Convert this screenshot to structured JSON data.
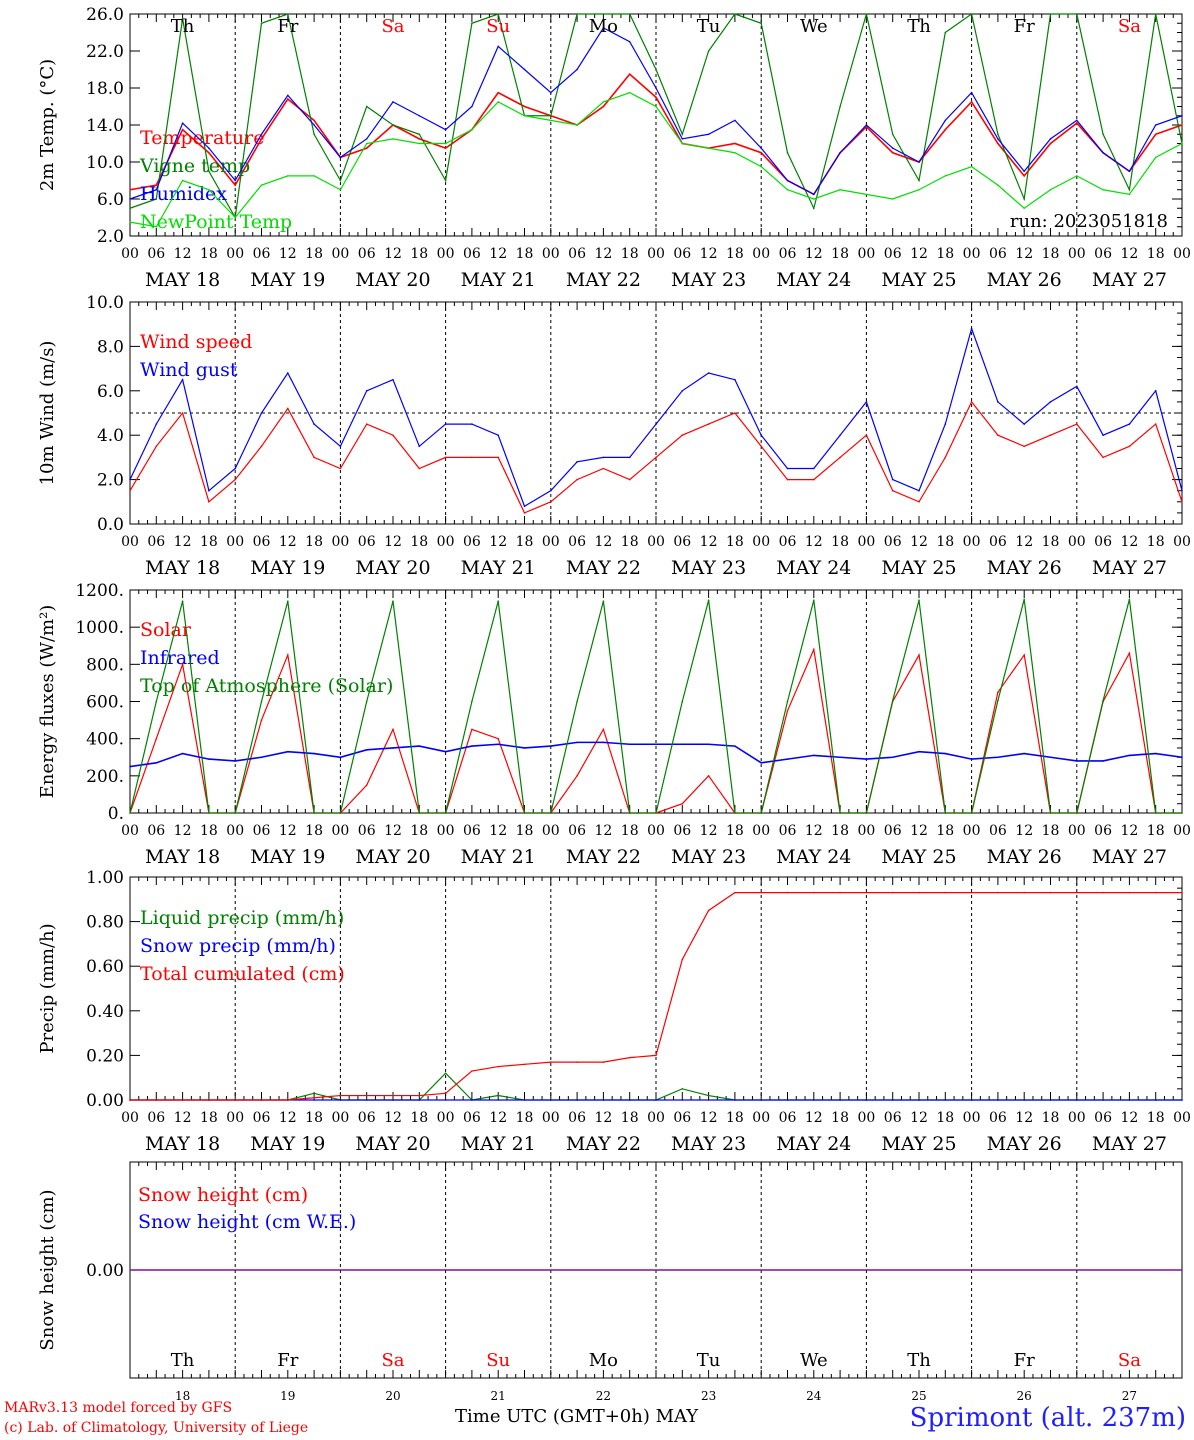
{
  "chart_data": [
    {
      "type": "line",
      "ylabel": "2m Temp. (°C)",
      "ylim": [
        2.0,
        26.0
      ],
      "yticks": [
        "2.0",
        "6.0",
        "10.0",
        "14.0",
        "18.0",
        "22.0",
        "26.0"
      ],
      "hours": [
        0,
        6,
        12,
        18,
        24,
        30,
        36,
        42,
        48,
        54,
        60,
        66,
        72,
        78,
        84,
        90,
        96,
        102,
        108,
        114,
        120,
        126,
        132,
        138,
        144,
        150,
        156,
        162,
        168,
        174,
        180,
        186,
        192,
        198,
        204,
        210,
        216,
        222,
        228,
        234,
        240
      ],
      "series": [
        {
          "name": "Temperature",
          "color": "#ff0000",
          "values": [
            7.0,
            7.5,
            13.5,
            11.0,
            7.5,
            12.5,
            16.8,
            14.5,
            10.5,
            11.5,
            14.0,
            12.5,
            11.5,
            13.5,
            17.5,
            16.0,
            15.0,
            14.0,
            16.0,
            19.5,
            17.0,
            12.0,
            11.5,
            12.0,
            11.0,
            8.0,
            6.5,
            11.0,
            13.8,
            11.0,
            10.0,
            13.5,
            16.5,
            12.0,
            8.5,
            12.0,
            14.2,
            11.0,
            9.0,
            13.0,
            14.0
          ]
        },
        {
          "name": "Vigne temp",
          "color": "#008000",
          "values": [
            5.0,
            6.0,
            25.5,
            9.0,
            4.0,
            25.0,
            26.0,
            13.0,
            8.0,
            16.0,
            14.0,
            13.0,
            8.0,
            25.0,
            26.0,
            15.0,
            15.0,
            26.0,
            26.0,
            26.0,
            20.0,
            13.0,
            22.0,
            26.0,
            25.0,
            11.0,
            5.0,
            16.0,
            26.0,
            13.0,
            8.0,
            24.0,
            26.0,
            13.0,
            6.0,
            26.0,
            26.0,
            13.0,
            7.0,
            26.0,
            12.0
          ]
        },
        {
          "name": "Humidex",
          "color": "#0000ff",
          "values": [
            6.0,
            7.0,
            14.2,
            11.5,
            8.0,
            13.0,
            17.2,
            14.0,
            10.5,
            12.5,
            16.5,
            15.0,
            13.5,
            16.0,
            22.5,
            20.0,
            17.5,
            20.0,
            24.5,
            23.0,
            18.0,
            12.5,
            13.0,
            14.5,
            11.5,
            8.0,
            6.5,
            11.0,
            14.0,
            11.5,
            10.0,
            14.5,
            17.5,
            12.5,
            9.0,
            12.5,
            14.5,
            11.0,
            9.0,
            14.0,
            15.0
          ]
        },
        {
          "name": "NewPoint Temp",
          "color": "#00e000",
          "values": [
            3.5,
            3.0,
            8.0,
            7.0,
            4.0,
            7.5,
            8.5,
            8.5,
            7.0,
            12.0,
            12.5,
            12.0,
            12.0,
            13.5,
            16.5,
            15.0,
            14.5,
            14.0,
            16.5,
            17.5,
            16.0,
            12.0,
            11.5,
            11.0,
            9.5,
            7.0,
            6.0,
            7.0,
            6.5,
            6.0,
            7.0,
            8.5,
            9.5,
            7.5,
            5.0,
            7.0,
            8.5,
            7.0,
            6.5,
            10.5,
            12.0
          ]
        }
      ],
      "annotation": "run: 2023051818"
    },
    {
      "type": "line",
      "ylabel": "10m Wind (m/s)",
      "ylim": [
        0.0,
        10.0
      ],
      "yticks": [
        "0.0",
        "2.0",
        "4.0",
        "6.0",
        "8.0",
        "10.0"
      ],
      "reference_line": 5.0,
      "hours": [
        0,
        6,
        12,
        18,
        24,
        30,
        36,
        42,
        48,
        54,
        60,
        66,
        72,
        78,
        84,
        90,
        96,
        102,
        108,
        114,
        120,
        126,
        132,
        138,
        144,
        150,
        156,
        162,
        168,
        174,
        180,
        186,
        192,
        198,
        204,
        210,
        216,
        222,
        228,
        234,
        240
      ],
      "series": [
        {
          "name": "Wind speed",
          "color": "#ff0000",
          "values": [
            1.5,
            3.5,
            5.0,
            1.0,
            2.0,
            3.5,
            5.2,
            3.0,
            2.5,
            4.5,
            4.0,
            2.5,
            3.0,
            3.0,
            3.0,
            0.5,
            1.0,
            2.0,
            2.5,
            2.0,
            3.0,
            4.0,
            4.5,
            5.0,
            3.5,
            2.0,
            2.0,
            3.0,
            4.0,
            1.5,
            1.0,
            3.0,
            5.5,
            4.0,
            3.5,
            4.0,
            4.5,
            3.0,
            3.5,
            4.5,
            1.0
          ]
        },
        {
          "name": "Wind gust",
          "color": "#0000ff",
          "values": [
            2.0,
            4.5,
            6.5,
            1.5,
            2.5,
            5.0,
            6.8,
            4.5,
            3.5,
            6.0,
            6.5,
            3.5,
            4.5,
            4.5,
            4.0,
            0.8,
            1.5,
            2.8,
            3.0,
            3.0,
            4.5,
            6.0,
            6.8,
            6.5,
            4.0,
            2.5,
            2.5,
            4.0,
            5.5,
            2.0,
            1.5,
            4.5,
            8.8,
            5.5,
            4.5,
            5.5,
            6.2,
            4.0,
            4.5,
            6.0,
            1.5
          ]
        }
      ]
    },
    {
      "type": "line",
      "ylabel": "Energy fluxes (W/m²)",
      "ylim": [
        0,
        1200
      ],
      "yticks": [
        "0.",
        "200.",
        "400.",
        "600.",
        "800.",
        "1000.",
        "1200."
      ],
      "hours": [
        0,
        6,
        12,
        18,
        24,
        30,
        36,
        42,
        48,
        54,
        60,
        66,
        72,
        78,
        84,
        90,
        96,
        102,
        108,
        114,
        120,
        126,
        132,
        138,
        144,
        150,
        156,
        162,
        168,
        174,
        180,
        186,
        192,
        198,
        204,
        210,
        216,
        222,
        228,
        234,
        240
      ],
      "series": [
        {
          "name": "Solar",
          "color": "#ff0000",
          "values": [
            0,
            400,
            800,
            0,
            0,
            500,
            850,
            0,
            0,
            150,
            450,
            0,
            0,
            450,
            400,
            0,
            0,
            200,
            450,
            0,
            0,
            50,
            200,
            0,
            0,
            550,
            880,
            0,
            0,
            600,
            850,
            0,
            0,
            650,
            850,
            0,
            0,
            600,
            860,
            0,
            0
          ]
        },
        {
          "name": "Infrared",
          "color": "#0000ff",
          "values": [
            250,
            270,
            320,
            290,
            280,
            300,
            330,
            320,
            300,
            340,
            350,
            360,
            330,
            360,
            370,
            350,
            360,
            380,
            380,
            370,
            370,
            370,
            370,
            360,
            270,
            290,
            310,
            300,
            290,
            300,
            330,
            320,
            290,
            300,
            320,
            300,
            280,
            280,
            310,
            320,
            300
          ]
        },
        {
          "name": "Top of Atmosphere (Solar)",
          "color": "#008000",
          "values": [
            0,
            600,
            1140,
            0,
            0,
            600,
            1140,
            0,
            0,
            600,
            1140,
            0,
            0,
            600,
            1140,
            0,
            0,
            600,
            1140,
            0,
            0,
            600,
            1145,
            0,
            0,
            600,
            1145,
            0,
            0,
            605,
            1145,
            0,
            0,
            605,
            1150,
            0,
            0,
            605,
            1150,
            0,
            0
          ]
        }
      ]
    },
    {
      "type": "line",
      "ylabel": "Precip (mm/h)",
      "ylim": [
        0.0,
        1.0
      ],
      "yticks": [
        "0.00",
        "0.20",
        "0.40",
        "0.60",
        "0.80",
        "1.00"
      ],
      "hours": [
        0,
        6,
        12,
        18,
        24,
        30,
        36,
        42,
        48,
        54,
        60,
        66,
        72,
        78,
        84,
        90,
        96,
        102,
        108,
        114,
        120,
        126,
        132,
        138,
        144,
        150,
        156,
        162,
        168,
        174,
        180,
        186,
        192,
        198,
        204,
        210,
        216,
        222,
        228,
        234,
        240
      ],
      "series": [
        {
          "name": "Liquid precip (mm/h)",
          "color": "#008000",
          "values": [
            0,
            0,
            0,
            0,
            0,
            0,
            0,
            0.03,
            0,
            0,
            0,
            0,
            0.12,
            0,
            0.02,
            0,
            0,
            0,
            0,
            0,
            0,
            0.05,
            0.02,
            0,
            0,
            0,
            0,
            0,
            0,
            0,
            0,
            0,
            0,
            0,
            0,
            0,
            0,
            0,
            0,
            0,
            0
          ]
        },
        {
          "name": "Snow precip (mm/h)",
          "color": "#0000ff",
          "values": [
            0,
            0,
            0,
            0,
            0,
            0,
            0,
            0,
            0,
            0,
            0,
            0,
            0,
            0,
            0,
            0,
            0,
            0,
            0,
            0,
            0,
            0,
            0,
            0,
            0,
            0,
            0,
            0,
            0,
            0,
            0,
            0,
            0,
            0,
            0,
            0,
            0,
            0,
            0,
            0,
            0
          ]
        },
        {
          "name": "Total cumulated (cm)",
          "color": "#ff0000",
          "values": [
            0,
            0,
            0,
            0,
            0,
            0,
            0,
            0.01,
            0.02,
            0.02,
            0.02,
            0.02,
            0.03,
            0.13,
            0.15,
            0.16,
            0.17,
            0.17,
            0.17,
            0.19,
            0.2,
            0.63,
            0.85,
            0.93,
            0.93,
            0.93,
            0.93,
            0.93,
            0.93,
            0.93,
            0.93,
            0.93,
            0.93,
            0.93,
            0.93,
            0.93,
            0.93,
            0.93,
            0.93,
            0.93,
            0.93
          ]
        }
      ]
    },
    {
      "type": "line",
      "ylabel": "Snow height (cm)",
      "yticks": [
        "0.00"
      ],
      "hours": [
        0,
        240
      ],
      "series": [
        {
          "name": "Snow height (cm)",
          "color": "#ff0000",
          "values": [
            0,
            0
          ]
        },
        {
          "name": "Snow height (cm W.E.)",
          "color": "#0000ff",
          "values": [
            0,
            0
          ]
        }
      ]
    }
  ],
  "x_axis": {
    "hour_ticks": [
      "00",
      "06",
      "12",
      "18"
    ],
    "end_tick": "00",
    "dates": [
      "MAY 18",
      "MAY 19",
      "MAY 20",
      "MAY 21",
      "MAY 22",
      "MAY 23",
      "MAY 24",
      "MAY 25",
      "MAY 26",
      "MAY 27"
    ],
    "weekdays": [
      {
        "label": "Th",
        "color": "#000000"
      },
      {
        "label": "Fr",
        "color": "#000000"
      },
      {
        "label": "Sa",
        "color": "#ff0000"
      },
      {
        "label": "Su",
        "color": "#ff0000"
      },
      {
        "label": "Mo",
        "color": "#000000"
      },
      {
        "label": "Tu",
        "color": "#000000"
      },
      {
        "label": "We",
        "color": "#000000"
      },
      {
        "label": "Th",
        "color": "#000000"
      },
      {
        "label": "Fr",
        "color": "#000000"
      },
      {
        "label": "Sa",
        "color": "#ff0000"
      }
    ],
    "day_numbers": [
      "18",
      "19",
      "20",
      "21",
      "22",
      "23",
      "24",
      "25",
      "26",
      "27"
    ],
    "title": "Time UTC (GMT+0h)",
    "month": "MAY"
  },
  "footer": {
    "credit_line1": "MARv3.13 model forced by GFS",
    "credit_line2": "(c) Lab. of Climatology, University of Liege",
    "place": "Sprimont (alt. 237m)"
  }
}
